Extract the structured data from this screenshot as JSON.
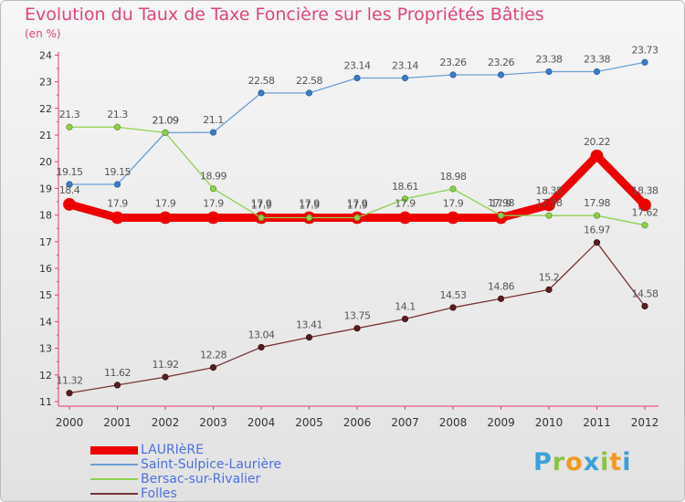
{
  "title": "Evolution du Taux de Taxe Foncière sur les Propriétés Bâties",
  "subtitle": "(en %)",
  "logo": {
    "letters": [
      "P",
      "r",
      "o",
      "x",
      "i",
      "t",
      "i"
    ],
    "colors": [
      "#3aa0d8",
      "#8bc53f",
      "#f29a1f",
      "#3aa0d8",
      "#8bc53f",
      "#f29a1f",
      "#3aa0d8"
    ]
  },
  "chart_data": {
    "type": "line",
    "title": "Evolution du Taux de Taxe Foncière sur les Propriétés Bâties",
    "ylabel": "(en %)",
    "x": [
      2000,
      2001,
      2002,
      2003,
      2004,
      2005,
      2006,
      2007,
      2008,
      2009,
      2010,
      2011,
      2012
    ],
    "x_tick_labels": [
      "2000",
      "2001",
      "2002",
      "2003",
      "2004",
      "2005",
      "2006",
      "2007",
      "2008",
      "2009",
      "2010",
      "2011",
      "2012"
    ],
    "ylim": [
      11,
      24
    ],
    "y_ticks": [
      11,
      12,
      13,
      14,
      15,
      16,
      17,
      18,
      19,
      20,
      21,
      22,
      23,
      24
    ],
    "grid": false,
    "legend_position": "bottom-left",
    "series": [
      {
        "name": "LAURIèRE",
        "color": "#ee0000",
        "values": [
          18.4,
          17.9,
          17.9,
          17.9,
          17.9,
          17.9,
          17.9,
          17.9,
          17.9,
          17.9,
          18.38,
          20.22,
          18.38
        ],
        "labels": [
          "18.4",
          "17.9",
          "17.9",
          "17.9",
          "17.9",
          "17.9",
          "17.9",
          "17.9",
          "17.9",
          "17.9",
          "18.38",
          "20.22",
          "18.38"
        ]
      },
      {
        "name": "Saint-Sulpice-Laurière",
        "color": "#6a9fd4",
        "values": [
          19.15,
          19.15,
          21.09,
          21.1,
          22.58,
          22.58,
          23.14,
          23.14,
          23.26,
          23.26,
          23.38,
          23.38,
          23.73
        ],
        "labels": [
          "19.15",
          "19.15",
          "21.09",
          "21.1",
          "22.58",
          "22.58",
          "23.14",
          "23.14",
          "23.26",
          "23.26",
          "23.38",
          "23.38",
          "23.73"
        ]
      },
      {
        "name": "Bersac-sur-Rivalier",
        "color": "#8fd14f",
        "values": [
          21.3,
          21.3,
          21.09,
          18.99,
          17.9,
          17.9,
          17.9,
          18.61,
          18.98,
          17.98,
          17.98,
          17.98,
          17.62
        ],
        "labels": [
          "21.3",
          "21.3",
          "21.09",
          "18.99",
          "17.9",
          "17.9",
          "17.9",
          "18.61",
          "18.98",
          "17.98",
          "17.98",
          "17.98",
          "17.62"
        ]
      },
      {
        "name": "Folles",
        "color": "#7a3232",
        "values": [
          11.32,
          11.62,
          11.92,
          12.28,
          13.04,
          13.41,
          13.75,
          14.1,
          14.53,
          14.86,
          15.2,
          16.97,
          14.58
        ],
        "labels": [
          "11.32",
          "11.62",
          "11.92",
          "12.28",
          "13.04",
          "13.41",
          "13.75",
          "14.1",
          "14.53",
          "14.86",
          "15.2",
          "16.97",
          "14.58"
        ]
      }
    ]
  }
}
